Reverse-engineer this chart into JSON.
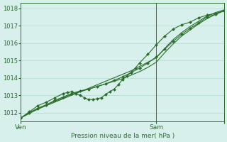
{
  "xlabel": "Pression niveau de la mer( hPa )",
  "ylim": [
    1011.5,
    1018.3
  ],
  "xlim": [
    0,
    48
  ],
  "yticks": [
    1012,
    1013,
    1014,
    1015,
    1016,
    1017,
    1018
  ],
  "xtick_positions": [
    0,
    32,
    48
  ],
  "xtick_labels": [
    "Ven",
    "Sam",
    ""
  ],
  "vline_x": 32,
  "bg_color": "#d8f0ec",
  "grid_color": "#b0d8d0",
  "line_color": "#2a6e2a",
  "series1_x": [
    0,
    2,
    4,
    6,
    8,
    10,
    12,
    14,
    16,
    18,
    20,
    22,
    24,
    26,
    28,
    30,
    32,
    34,
    36,
    38,
    40,
    42,
    44,
    46,
    48
  ],
  "series1_y": [
    1011.7,
    1011.95,
    1012.2,
    1012.4,
    1012.6,
    1012.8,
    1013.0,
    1013.2,
    1013.4,
    1013.6,
    1013.8,
    1014.0,
    1014.2,
    1014.4,
    1014.65,
    1014.9,
    1015.15,
    1015.7,
    1016.2,
    1016.6,
    1016.95,
    1017.25,
    1017.55,
    1017.75,
    1017.9
  ],
  "series2_x": [
    0,
    2,
    4,
    6,
    8,
    10,
    12,
    14,
    16,
    18,
    20,
    22,
    24,
    26,
    28,
    30,
    32,
    34,
    36,
    38,
    40,
    42,
    44,
    46,
    48
  ],
  "series2_y": [
    1011.7,
    1012.0,
    1012.25,
    1012.45,
    1012.65,
    1012.85,
    1013.05,
    1013.2,
    1013.35,
    1013.5,
    1013.65,
    1013.8,
    1013.95,
    1014.15,
    1014.35,
    1014.6,
    1014.9,
    1015.45,
    1015.95,
    1016.4,
    1016.75,
    1017.1,
    1017.4,
    1017.65,
    1017.85
  ],
  "series3_x": [
    0,
    2,
    4,
    6,
    8,
    10,
    12,
    14,
    16,
    18,
    20,
    22,
    24,
    26,
    28,
    30,
    32,
    34,
    36,
    38,
    40,
    42,
    44,
    46,
    48
  ],
  "series3_y": [
    1011.7,
    1012.0,
    1012.25,
    1012.45,
    1012.7,
    1012.9,
    1013.1,
    1013.25,
    1013.35,
    1013.5,
    1013.65,
    1013.85,
    1014.05,
    1014.3,
    1014.55,
    1014.85,
    1015.2,
    1015.65,
    1016.1,
    1016.5,
    1016.85,
    1017.15,
    1017.5,
    1017.65,
    1017.85
  ],
  "series4_x": [
    0,
    2,
    4,
    6,
    8,
    10,
    11,
    12,
    13,
    14,
    15,
    16,
    17,
    18,
    19,
    20,
    21,
    22,
    23,
    24,
    25,
    26,
    27,
    28,
    30,
    32,
    34,
    36,
    38,
    40,
    42,
    44,
    46,
    48
  ],
  "series4_y": [
    1011.7,
    1012.05,
    1012.4,
    1012.6,
    1012.85,
    1013.1,
    1013.15,
    1013.2,
    1013.1,
    1013.0,
    1012.85,
    1012.75,
    1012.75,
    1012.8,
    1012.85,
    1013.05,
    1013.2,
    1013.35,
    1013.6,
    1013.9,
    1014.1,
    1014.3,
    1014.55,
    1014.85,
    1015.35,
    1015.9,
    1016.4,
    1016.8,
    1017.05,
    1017.2,
    1017.45,
    1017.6,
    1017.7,
    1017.85
  ]
}
